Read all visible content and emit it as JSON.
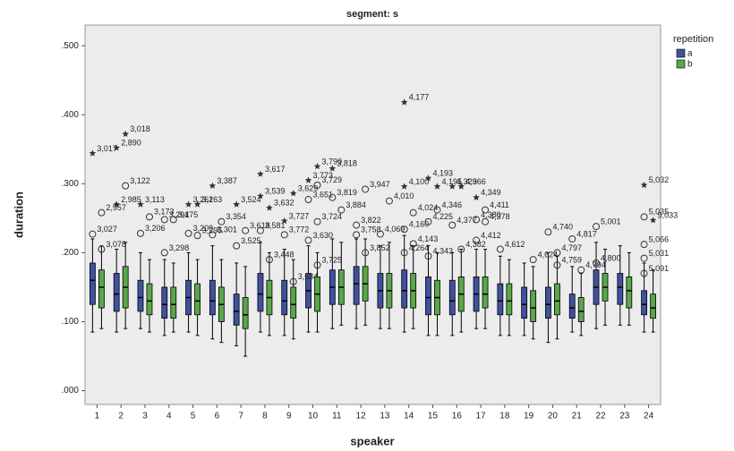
{
  "chart_data": {
    "type": "boxplot",
    "title": "segment: s",
    "x_label": "speaker",
    "y_label": "duration",
    "legend_title": "repetition",
    "legend_position": "right",
    "categories": [
      "1",
      "2",
      "3",
      "4",
      "5",
      "6",
      "7",
      "8",
      "9",
      "10",
      "11",
      "12",
      "13",
      "14",
      "15",
      "16",
      "17",
      "18",
      "19",
      "20",
      "21",
      "22",
      "23",
      "24"
    ],
    "ylim": [
      -0.02,
      0.53
    ],
    "yticks": [
      {
        "value": 0,
        "label": ".000"
      },
      {
        "value": 0.1,
        "label": ".100"
      },
      {
        "value": 0.2,
        "label": ".200"
      },
      {
        "value": 0.3,
        "label": ".300"
      },
      {
        "value": 0.4,
        "label": ".400"
      },
      {
        "value": 0.5,
        "label": ".500"
      }
    ],
    "series": [
      {
        "name": "a",
        "color": "#3f51a0",
        "boxes": [
          [
            0.085,
            0.125,
            0.16,
            0.185,
            0.22
          ],
          [
            0.085,
            0.115,
            0.14,
            0.17,
            0.205
          ],
          [
            0.09,
            0.115,
            0.135,
            0.16,
            0.2
          ],
          [
            0.08,
            0.105,
            0.125,
            0.15,
            0.19
          ],
          [
            0.085,
            0.11,
            0.135,
            0.16,
            0.2
          ],
          [
            0.075,
            0.11,
            0.13,
            0.16,
            0.21
          ],
          [
            0.065,
            0.095,
            0.115,
            0.14,
            0.185
          ],
          [
            0.085,
            0.115,
            0.14,
            0.17,
            0.215
          ],
          [
            0.08,
            0.11,
            0.13,
            0.16,
            0.205
          ],
          [
            0.085,
            0.12,
            0.145,
            0.17,
            0.21
          ],
          [
            0.09,
            0.125,
            0.15,
            0.175,
            0.22
          ],
          [
            0.09,
            0.125,
            0.155,
            0.18,
            0.22
          ],
          [
            0.09,
            0.12,
            0.145,
            0.17,
            0.21
          ],
          [
            0.085,
            0.12,
            0.145,
            0.175,
            0.225
          ],
          [
            0.08,
            0.11,
            0.135,
            0.165,
            0.21
          ],
          [
            0.08,
            0.11,
            0.13,
            0.16,
            0.2
          ],
          [
            0.09,
            0.115,
            0.14,
            0.165,
            0.205
          ],
          [
            0.08,
            0.11,
            0.13,
            0.155,
            0.195
          ],
          [
            0.08,
            0.105,
            0.125,
            0.15,
            0.185
          ],
          [
            0.07,
            0.105,
            0.125,
            0.15,
            0.2
          ],
          [
            0.085,
            0.105,
            0.12,
            0.14,
            0.18
          ],
          [
            0.09,
            0.125,
            0.15,
            0.175,
            0.215
          ],
          [
            0.095,
            0.125,
            0.15,
            0.17,
            0.21
          ],
          [
            0.085,
            0.11,
            0.125,
            0.145,
            0.185
          ]
        ],
        "outliers": [
          [
            {
              "value": 0.344,
              "label": "3,017",
              "marker": "star"
            },
            {
              "value": 0.227,
              "label": "3,027",
              "marker": "circle"
            }
          ],
          [
            {
              "value": 0.352,
              "label": "2,890",
              "marker": "star"
            },
            {
              "value": 0.27,
              "label": "2,985",
              "marker": "star"
            }
          ],
          [
            {
              "value": 0.27,
              "label": "3,113",
              "marker": "star"
            },
            {
              "value": 0.228,
              "label": "3,206",
              "marker": "circle"
            }
          ],
          [
            {
              "value": 0.248,
              "label": "3,294",
              "marker": "circle"
            },
            {
              "value": 0.2,
              "label": "3,298",
              "marker": "circle"
            }
          ],
          [
            {
              "value": 0.27,
              "label": "3,261",
              "marker": "star"
            },
            {
              "value": 0.228,
              "label": "3,209",
              "marker": "circle"
            }
          ],
          [
            {
              "value": 0.297,
              "label": "3,387",
              "marker": "star"
            },
            {
              "value": 0.226,
              "label": "3,301",
              "marker": "circle"
            }
          ],
          [
            {
              "value": 0.27,
              "label": "3,524",
              "marker": "star"
            },
            {
              "value": 0.21,
              "label": "3,525",
              "marker": "circle"
            }
          ],
          [
            {
              "value": 0.314,
              "label": "3,617",
              "marker": "star"
            },
            {
              "value": 0.282,
              "label": "3,539",
              "marker": "star"
            },
            {
              "value": 0.232,
              "label": "3,581",
              "marker": "circle"
            }
          ],
          [
            {
              "value": 0.246,
              "label": "3,727",
              "marker": "star"
            },
            {
              "value": 0.226,
              "label": "3,772",
              "marker": "circle"
            }
          ],
          [
            {
              "value": 0.305,
              "label": "3,773",
              "marker": "star"
            },
            {
              "value": 0.277,
              "label": "3,651",
              "marker": "circle"
            },
            {
              "value": 0.218,
              "label": "3,630",
              "marker": "circle"
            }
          ],
          [
            {
              "value": 0.322,
              "label": "3,818",
              "marker": "star"
            },
            {
              "value": 0.28,
              "label": "3,819",
              "marker": "circle"
            }
          ],
          [
            {
              "value": 0.24,
              "label": "3,822",
              "marker": "circle"
            },
            {
              "value": 0.226,
              "label": "3,758",
              "marker": "circle"
            }
          ],
          [
            {
              "value": 0.227,
              "label": "4,069",
              "marker": "circle"
            }
          ],
          [
            {
              "value": 0.418,
              "label": "4,177",
              "marker": "star"
            },
            {
              "value": 0.296,
              "label": "4,100",
              "marker": "star"
            },
            {
              "value": 0.234,
              "label": "4,160",
              "marker": "circle"
            },
            {
              "value": 0.2,
              "label": "4,264",
              "marker": "circle"
            }
          ],
          [
            {
              "value": 0.308,
              "label": "4,193",
              "marker": "star"
            },
            {
              "value": 0.245,
              "label": "4,225",
              "marker": "circle"
            },
            {
              "value": 0.195,
              "label": "4,343",
              "marker": "circle"
            }
          ],
          [
            {
              "value": 0.296,
              "label": "4,329",
              "marker": "star"
            },
            {
              "value": 0.24,
              "label": "4,377",
              "marker": "circle"
            }
          ],
          [
            {
              "value": 0.28,
              "label": "4,349",
              "marker": "star"
            },
            {
              "value": 0.248,
              "label": "4,380",
              "marker": "circle"
            },
            {
              "value": 0.218,
              "label": "4,412",
              "marker": "circle"
            }
          ],
          [
            {
              "value": 0.205,
              "label": "4,612",
              "marker": "circle"
            }
          ],
          [],
          [
            {
              "value": 0.23,
              "label": "4,740",
              "marker": "circle"
            }
          ],
          [
            {
              "value": 0.22,
              "label": "4,817",
              "marker": "circle"
            }
          ],
          [
            {
              "value": 0.238,
              "label": "5,001",
              "marker": "circle"
            },
            {
              "value": 0.185,
              "label": "4,800",
              "marker": "circle"
            }
          ],
          [],
          [
            {
              "value": 0.298,
              "label": "5,032",
              "marker": "star"
            },
            {
              "value": 0.252,
              "label": "5,035",
              "marker": "circle"
            },
            {
              "value": 0.212,
              "label": "5,066",
              "marker": "circle"
            },
            {
              "value": 0.192,
              "label": "5,031",
              "marker": "circle"
            },
            {
              "value": 0.17,
              "label": "5,091",
              "marker": "circle"
            }
          ]
        ]
      },
      {
        "name": "b",
        "color": "#58a84b",
        "boxes": [
          [
            0.09,
            0.12,
            0.15,
            0.175,
            0.21
          ],
          [
            0.09,
            0.12,
            0.15,
            0.18,
            0.215
          ],
          [
            0.085,
            0.11,
            0.13,
            0.155,
            0.19
          ],
          [
            0.085,
            0.105,
            0.125,
            0.15,
            0.185
          ],
          [
            0.08,
            0.11,
            0.13,
            0.155,
            0.19
          ],
          [
            0.07,
            0.1,
            0.125,
            0.15,
            0.19
          ],
          [
            0.05,
            0.09,
            0.11,
            0.135,
            0.18
          ],
          [
            0.08,
            0.11,
            0.135,
            0.16,
            0.2
          ],
          [
            0.075,
            0.105,
            0.125,
            0.15,
            0.19
          ],
          [
            0.085,
            0.115,
            0.14,
            0.165,
            0.2
          ],
          [
            0.095,
            0.125,
            0.15,
            0.175,
            0.215
          ],
          [
            0.095,
            0.13,
            0.155,
            0.18,
            0.22
          ],
          [
            0.09,
            0.12,
            0.145,
            0.17,
            0.215
          ],
          [
            0.09,
            0.12,
            0.145,
            0.17,
            0.21
          ],
          [
            0.08,
            0.11,
            0.135,
            0.16,
            0.2
          ],
          [
            0.085,
            0.115,
            0.14,
            0.165,
            0.205
          ],
          [
            0.09,
            0.12,
            0.14,
            0.165,
            0.205
          ],
          [
            0.08,
            0.11,
            0.13,
            0.155,
            0.19
          ],
          [
            0.075,
            0.1,
            0.12,
            0.145,
            0.18
          ],
          [
            0.075,
            0.11,
            0.13,
            0.155,
            0.195
          ],
          [
            0.08,
            0.1,
            0.115,
            0.135,
            0.17
          ],
          [
            0.095,
            0.13,
            0.15,
            0.17,
            0.205
          ],
          [
            0.095,
            0.12,
            0.145,
            0.165,
            0.2
          ],
          [
            0.085,
            0.105,
            0.12,
            0.14,
            0.175
          ]
        ],
        "outliers": [
          [
            {
              "value": 0.258,
              "label": "2,957",
              "marker": "circle"
            },
            {
              "value": 0.205,
              "label": "3,078",
              "marker": "circle"
            }
          ],
          [
            {
              "value": 0.372,
              "label": "3,018",
              "marker": "star"
            },
            {
              "value": 0.297,
              "label": "3,122",
              "marker": "circle"
            }
          ],
          [
            {
              "value": 0.252,
              "label": "3,173",
              "marker": "circle"
            }
          ],
          [
            {
              "value": 0.248,
              "label": "3,175",
              "marker": "circle"
            }
          ],
          [
            {
              "value": 0.27,
              "label": "3,263",
              "marker": "star"
            },
            {
              "value": 0.225,
              "label": "3,295",
              "marker": "circle"
            }
          ],
          [
            {
              "value": 0.245,
              "label": "3,354",
              "marker": "circle"
            }
          ],
          [
            {
              "value": 0.232,
              "label": "3,618",
              "marker": "circle"
            }
          ],
          [
            {
              "value": 0.265,
              "label": "3,632",
              "marker": "star"
            },
            {
              "value": 0.19,
              "label": "3,448",
              "marker": "circle"
            }
          ],
          [
            {
              "value": 0.286,
              "label": "3,629",
              "marker": "star"
            },
            {
              "value": 0.158,
              "label": "3,634",
              "marker": "circle"
            }
          ],
          [
            {
              "value": 0.325,
              "label": "3,790",
              "marker": "star"
            },
            {
              "value": 0.298,
              "label": "3,729",
              "marker": "circle"
            },
            {
              "value": 0.245,
              "label": "3,724",
              "marker": "circle"
            },
            {
              "value": 0.182,
              "label": "3,725",
              "marker": "circle"
            }
          ],
          [
            {
              "value": 0.262,
              "label": "3,884",
              "marker": "circle"
            }
          ],
          [
            {
              "value": 0.292,
              "label": "3,947",
              "marker": "circle"
            },
            {
              "value": 0.2,
              "label": "3,852",
              "marker": "circle"
            }
          ],
          [
            {
              "value": 0.275,
              "label": "4,010",
              "marker": "circle"
            }
          ],
          [
            {
              "value": 0.258,
              "label": "4,024",
              "marker": "circle"
            },
            {
              "value": 0.213,
              "label": "4,143",
              "marker": "circle"
            }
          ],
          [
            {
              "value": 0.296,
              "label": "4,195",
              "marker": "star"
            },
            {
              "value": 0.262,
              "label": "4,346",
              "marker": "circle"
            }
          ],
          [
            {
              "value": 0.296,
              "label": "4,366",
              "marker": "star"
            },
            {
              "value": 0.205,
              "label": "4,382",
              "marker": "circle"
            }
          ],
          [
            {
              "value": 0.262,
              "label": "4,411",
              "marker": "circle"
            },
            {
              "value": 0.245,
              "label": "4,378",
              "marker": "circle"
            }
          ],
          [],
          [
            {
              "value": 0.19,
              "label": "4,624",
              "marker": "circle"
            }
          ],
          [
            {
              "value": 0.2,
              "label": "4,797",
              "marker": "circle"
            },
            {
              "value": 0.182,
              "label": "4,759",
              "marker": "circle"
            }
          ],
          [
            {
              "value": 0.175,
              "label": "4,794",
              "marker": "circle"
            }
          ],
          [],
          [],
          [
            {
              "value": 0.247,
              "label": "5,033",
              "marker": "star"
            }
          ]
        ]
      }
    ]
  }
}
